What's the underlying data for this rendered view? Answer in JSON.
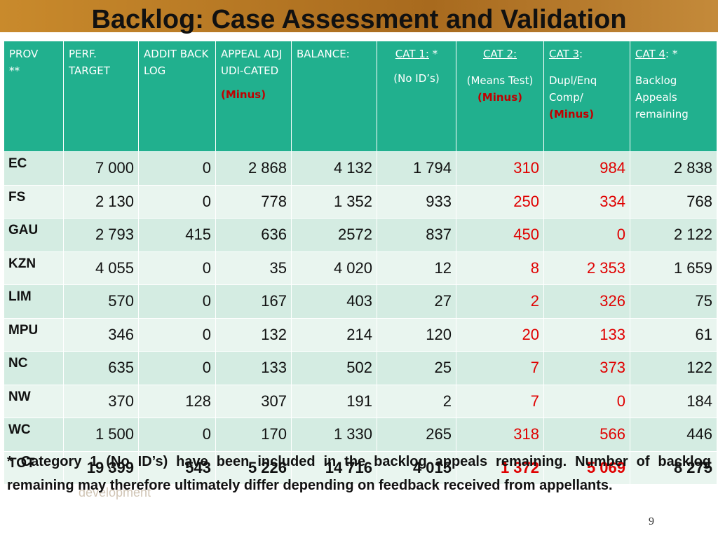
{
  "title": "Backlog: Case Assessment and Validation",
  "table": {
    "header": [
      [
        "PROV",
        "**"
      ],
      [
        "PERF.",
        "TARGET"
      ],
      [
        "ADDIT BACKLOG"
      ],
      [
        "APPEAL ADJUDI-CATED",
        "(Minus)"
      ],
      [
        "BALANCE:"
      ],
      [
        "CAT 1:",
        " *",
        "(No ID’s)"
      ],
      [
        "CAT 2:",
        "(Means Test)",
        "(Minus)"
      ],
      [
        "CAT 3",
        ":",
        "Dupl/Enq Comp/",
        "(Minus)"
      ],
      [
        "CAT 4",
        ": *",
        "Backlog Appeals remaining"
      ]
    ],
    "rows": [
      [
        "EC",
        "7 000",
        "0",
        "2 868",
        "4 132",
        "1 794",
        "310",
        "984",
        "2 838"
      ],
      [
        "FS",
        "2 130",
        "0",
        "778",
        "1 352",
        "933",
        "250",
        "334",
        "768"
      ],
      [
        "GAU",
        "2 793",
        "415",
        "636",
        "2572",
        "837",
        "450",
        "0",
        "2 122"
      ],
      [
        "KZN",
        "4 055",
        "0",
        "35",
        "4 020",
        "12",
        "8",
        "2 353",
        "1 659"
      ],
      [
        "LIM",
        "570",
        "0",
        "167",
        "403",
        "27",
        "2",
        "326",
        "75"
      ],
      [
        "MPU",
        "346",
        "0",
        "132",
        "214",
        "120",
        "20",
        "133",
        "61"
      ],
      [
        "NC",
        "635",
        "0",
        "133",
        "502",
        "25",
        "7",
        "373",
        "122"
      ],
      [
        "NW",
        "370",
        "128",
        "307",
        "191",
        "2",
        "7",
        "0",
        "184"
      ],
      [
        "WC",
        "1 500",
        "0",
        "170",
        "1 330",
        "265",
        "318",
        "566",
        "446"
      ],
      [
        "TOT",
        "19 399",
        "543",
        "5 226",
        "14 716",
        "4 015",
        "1 372",
        "5 069",
        "8 275"
      ]
    ]
  },
  "footnote": "* Category 1 (No ID’s) have been included in the backlog appeals remaining.  Number of backlog remaining may therefore ultimately differ depending on feedback received from appellants.",
  "logo_text": "social development",
  "page_number": "9"
}
